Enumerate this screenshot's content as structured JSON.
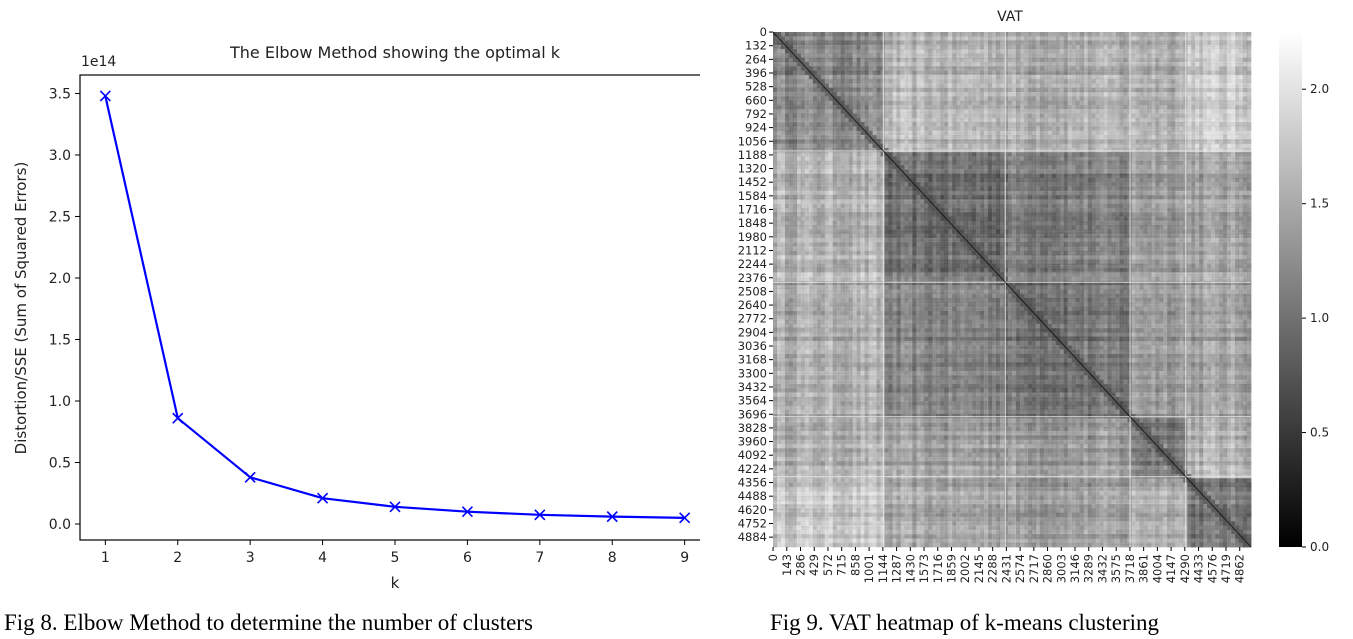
{
  "chart_data": [
    {
      "type": "line",
      "title": "The Elbow Method showing the optimal k",
      "xlabel": "k",
      "ylabel": "Distortion/SSE (Sum of Squared Errors)",
      "y_offset_label": "1e14",
      "x": [
        1,
        2,
        3,
        4,
        5,
        6,
        7,
        8,
        9
      ],
      "series": [
        {
          "values": [
            3.48,
            0.86,
            0.38,
            0.21,
            0.14,
            0.1,
            0.075,
            0.06,
            0.05
          ],
          "color": "#0000ff",
          "marker": "x"
        }
      ],
      "x_ticks": [
        "1",
        "2",
        "3",
        "4",
        "5",
        "6",
        "7",
        "8",
        "9"
      ],
      "y_ticks": [
        "0.0",
        "0.5",
        "1.0",
        "1.5",
        "2.0",
        "2.5",
        "3.0",
        "3.5"
      ],
      "xlim": [
        0.65,
        9.35
      ],
      "ylim": [
        -0.13,
        3.65
      ],
      "grid": false
    },
    {
      "type": "heatmap",
      "title": "VAT",
      "colormap": "gray",
      "y_ticks": [
        "0",
        "132",
        "264",
        "396",
        "528",
        "660",
        "792",
        "924",
        "1056",
        "1188",
        "1320",
        "1452",
        "1584",
        "1716",
        "1848",
        "1980",
        "2112",
        "2244",
        "2376",
        "2508",
        "2640",
        "2772",
        "2904",
        "3036",
        "3168",
        "3300",
        "3432",
        "3564",
        "3696",
        "3828",
        "3960",
        "4092",
        "4224",
        "4356",
        "4488",
        "4620",
        "4752",
        "4884"
      ],
      "x_ticks": [
        "0",
        "143",
        "286",
        "429",
        "572",
        "715",
        "858",
        "1001",
        "1144",
        "1287",
        "1430",
        "1573",
        "1716",
        "1859",
        "2002",
        "2145",
        "2288",
        "2431",
        "2574",
        "2717",
        "2860",
        "3003",
        "3146",
        "3289",
        "3432",
        "3575",
        "3718",
        "3861",
        "4004",
        "4147",
        "4290",
        "4433",
        "4576",
        "4719",
        "4862"
      ],
      "colorbar_ticks": [
        "0.0",
        "0.5",
        "1.0",
        "1.5",
        "2.0"
      ],
      "colorbar_range": [
        0.0,
        2.25
      ],
      "n": 4980,
      "clusters": [
        [
          0,
          1150
        ],
        [
          1150,
          2420
        ],
        [
          2420,
          3720
        ],
        [
          3720,
          4300
        ],
        [
          4300,
          4980
        ]
      ]
    }
  ],
  "captions": {
    "fig8": "Fig 8. Elbow Method to determine the number of clusters",
    "fig9": "Fig 9. VAT heatmap of k-means clustering"
  }
}
